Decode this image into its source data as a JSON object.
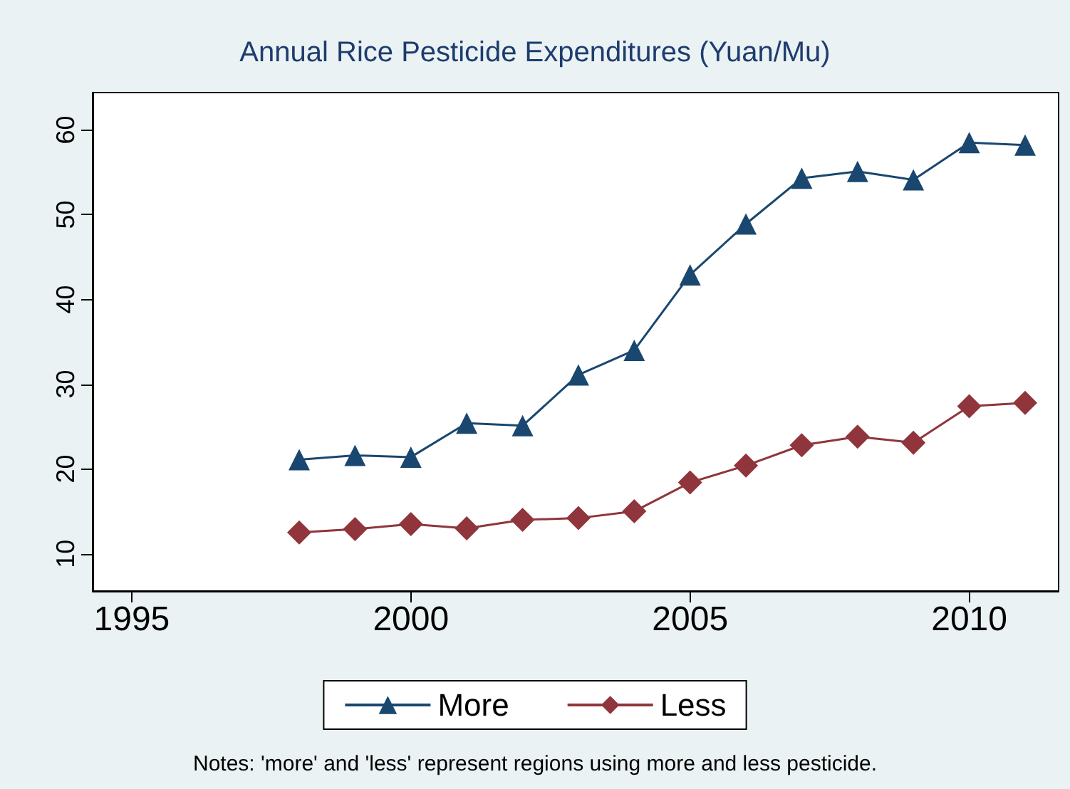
{
  "chart_data": {
    "type": "line",
    "title": "Annual Rice Pesticide Expenditures (Yuan/Mu)",
    "x": [
      1998,
      1999,
      2000,
      2001,
      2002,
      2003,
      2004,
      2005,
      2006,
      2007,
      2008,
      2009,
      2010,
      2011
    ],
    "series": [
      {
        "name": "More",
        "color": "#1a476f",
        "marker": "triangle",
        "values": [
          21.1,
          21.6,
          21.4,
          25.4,
          25.1,
          31.1,
          34.0,
          42.9,
          48.9,
          54.3,
          55.1,
          54.1,
          58.5,
          58.2
        ]
      },
      {
        "name": "Less",
        "color": "#90353b",
        "marker": "diamond",
        "values": [
          12.5,
          12.9,
          13.5,
          13.0,
          14.0,
          14.2,
          15.0,
          18.4,
          20.4,
          22.8,
          23.8,
          23.1,
          27.4,
          27.8
        ]
      }
    ],
    "xlim": [
      1994.3,
      2011.6
    ],
    "xticks": [
      1995,
      2000,
      2005,
      2010
    ],
    "ylim": [
      5.6,
      64.4
    ],
    "yticks": [
      10,
      20,
      30,
      40,
      50,
      60
    ],
    "grid": false,
    "legend": "bottom",
    "line_style": "solid",
    "annotations": [
      "Notes: 'more' and 'less' represent regions using more and less pesticide."
    ]
  }
}
